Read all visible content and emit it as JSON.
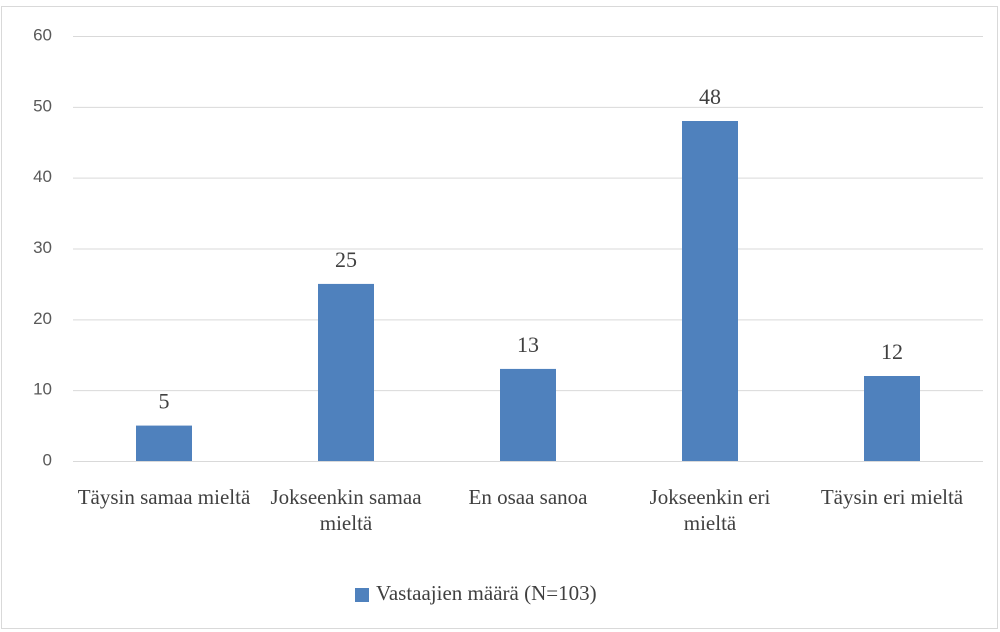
{
  "chart_data": {
    "type": "bar",
    "categories": [
      "Täysin samaa mieltä",
      "Jokseenkin samaa mieltä",
      "En osaa sanoa",
      "Jokseenkin eri mieltä",
      "Täysin eri mieltä"
    ],
    "series": [
      {
        "name": "Vastaajien määrä  (N=103)",
        "color": "#4f81bd",
        "values": [
          5,
          25,
          13,
          48,
          12
        ]
      }
    ],
    "ylim": [
      0,
      60
    ],
    "yticks": [
      0,
      10,
      20,
      30,
      40,
      50,
      60
    ],
    "grid": true,
    "legend": "bottom"
  }
}
